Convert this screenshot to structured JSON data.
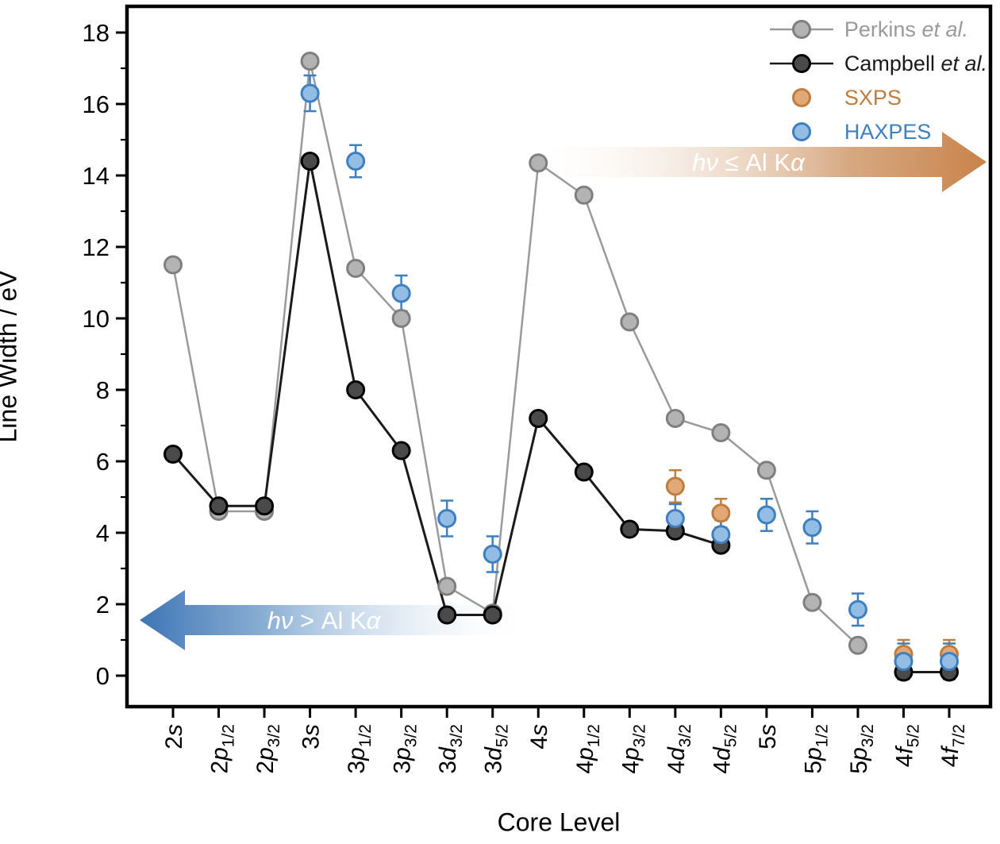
{
  "figure": {
    "x_title": "Core Level",
    "y_title": "Line Width / eV"
  },
  "arrows": {
    "left": {
      "label": "hν > Al Kα",
      "color": "#3d74b5",
      "direction": "left"
    },
    "right": {
      "label": "hν ≤ Al Kα",
      "color": "#c9824a",
      "direction": "right"
    }
  },
  "legend": {
    "items": [
      {
        "id": "perkins",
        "name": "Perkins ",
        "suffix": "et al.",
        "text_color": "#9a9a9a",
        "swatch": "line-marker"
      },
      {
        "id": "campbell",
        "name": "Campbell ",
        "suffix": "et al.",
        "text_color": "#1a1a1a",
        "swatch": "line-marker"
      },
      {
        "id": "sxps",
        "name": "SXPS",
        "suffix": "",
        "text_color": "#bf7d3e",
        "swatch": "marker"
      },
      {
        "id": "haxpes",
        "name": "HAXPES",
        "suffix": "",
        "text_color": "#3e7fc1",
        "swatch": "marker"
      }
    ]
  },
  "chart_data": {
    "type": "scatter",
    "title": "",
    "xlabel": "Core Level",
    "ylabel": "Line Width / eV",
    "categories": [
      "2s",
      "2p1/2",
      "2p3/2",
      "3s",
      "3p1/2",
      "3p3/2",
      "3d3/2",
      "3d5/2",
      "4s",
      "4p1/2",
      "4p3/2",
      "4d3/2",
      "4d5/2",
      "5s",
      "5p1/2",
      "5p3/2",
      "4f5/2",
      "4f7/2"
    ],
    "y_ticks": [
      0,
      2,
      4,
      6,
      8,
      10,
      12,
      14,
      16,
      18
    ],
    "y_minor_step": 1,
    "ylim": [
      -0.9,
      18.75
    ],
    "grid": false,
    "legend_position": "top-right",
    "series": [
      {
        "name": "Perkins et al.",
        "style": "line+marker",
        "fill": "#b3b3b3",
        "stroke": "#7f7f7f",
        "line_color": "#9a9a9a",
        "values": [
          11.5,
          4.6,
          4.6,
          17.2,
          11.4,
          10.0,
          2.5,
          1.75,
          14.35,
          13.45,
          9.9,
          7.2,
          6.8,
          5.75,
          2.05,
          0.85,
          null,
          null
        ],
        "errors": null
      },
      {
        "name": "Campbell et al.",
        "style": "line+marker",
        "fill": "#4a4a4a",
        "stroke": "#000000",
        "line_color": "#1a1a1a",
        "values": [
          6.2,
          4.75,
          4.75,
          14.4,
          8.0,
          6.3,
          1.7,
          1.7,
          7.2,
          5.7,
          4.1,
          4.05,
          3.65,
          null,
          null,
          null,
          0.1,
          0.1
        ],
        "errors": null
      },
      {
        "name": "SXPS",
        "style": "marker",
        "fill": "#e2a877",
        "stroke": "#bf7d3e",
        "line_color": null,
        "values": [
          null,
          null,
          null,
          null,
          null,
          null,
          null,
          null,
          null,
          null,
          null,
          5.3,
          4.55,
          null,
          null,
          null,
          0.6,
          0.6
        ],
        "errors": [
          null,
          null,
          null,
          null,
          null,
          null,
          null,
          null,
          null,
          null,
          null,
          0.45,
          0.4,
          null,
          null,
          null,
          0.4,
          0.4
        ]
      },
      {
        "name": "HAXPES",
        "style": "marker",
        "fill": "#93bde2",
        "stroke": "#3e7fc1",
        "line_color": null,
        "values": [
          null,
          null,
          null,
          16.3,
          14.4,
          10.7,
          4.4,
          3.4,
          null,
          null,
          null,
          4.4,
          3.95,
          4.5,
          4.15,
          1.85,
          0.4,
          0.4
        ],
        "errors": [
          null,
          null,
          null,
          0.5,
          0.45,
          0.5,
          0.5,
          0.5,
          null,
          null,
          null,
          0.4,
          0.4,
          0.45,
          0.45,
          0.45,
          0.5,
          0.5
        ]
      }
    ]
  }
}
